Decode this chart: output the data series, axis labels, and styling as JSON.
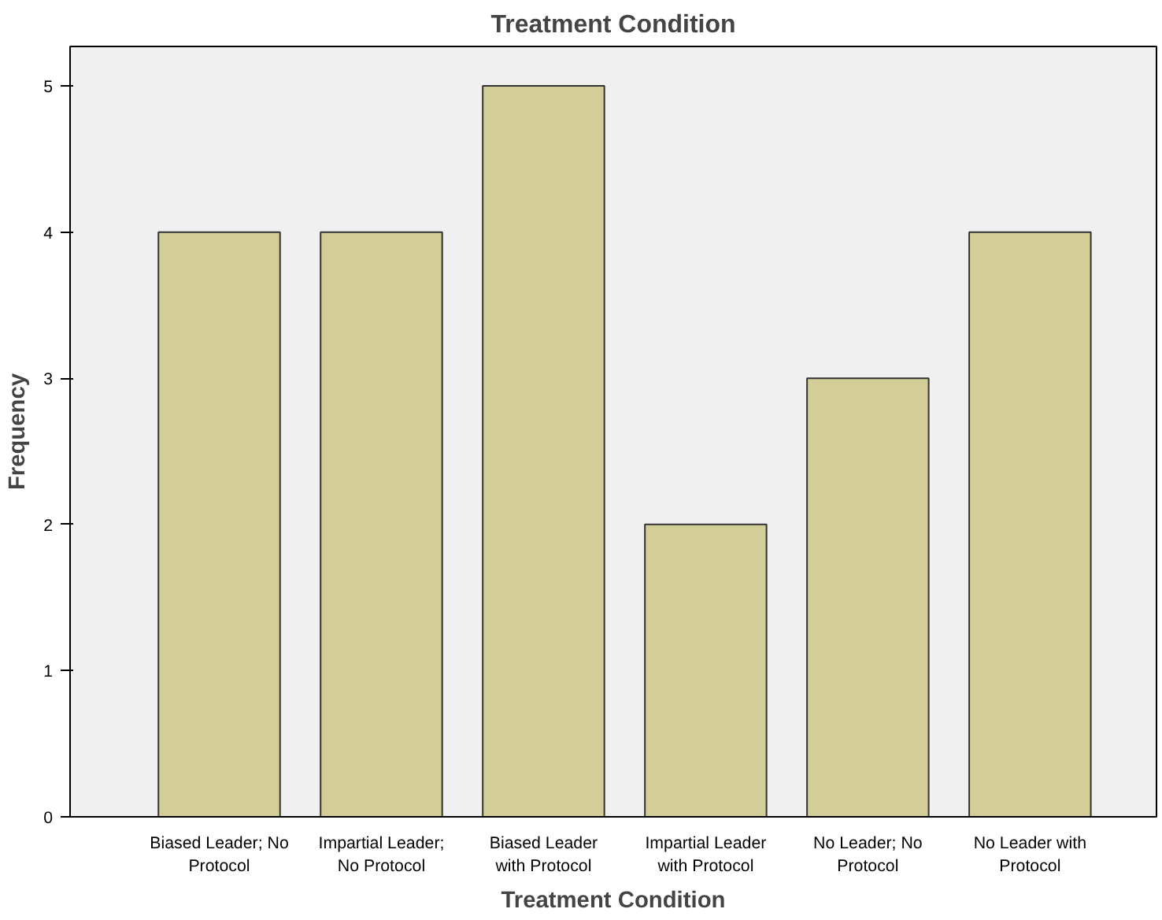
{
  "chart_data": {
    "type": "bar",
    "title": "Treatment Condition",
    "xlabel": "Treatment Condition",
    "ylabel": "Frequency",
    "categories": [
      "Biased Leader; No Protocol",
      "Impartial Leader; No Protocol",
      "Biased Leader with Protocol",
      "Impartial Leader with Protocol",
      "No Leader; No Protocol",
      "No Leader with Protocol"
    ],
    "values": [
      4,
      4,
      5,
      2,
      3,
      4
    ],
    "color": "#d3ce97",
    "ylim": [
      0,
      5.27
    ],
    "yticks": [
      0,
      1,
      2,
      3,
      4,
      5
    ],
    "grid": false
  }
}
